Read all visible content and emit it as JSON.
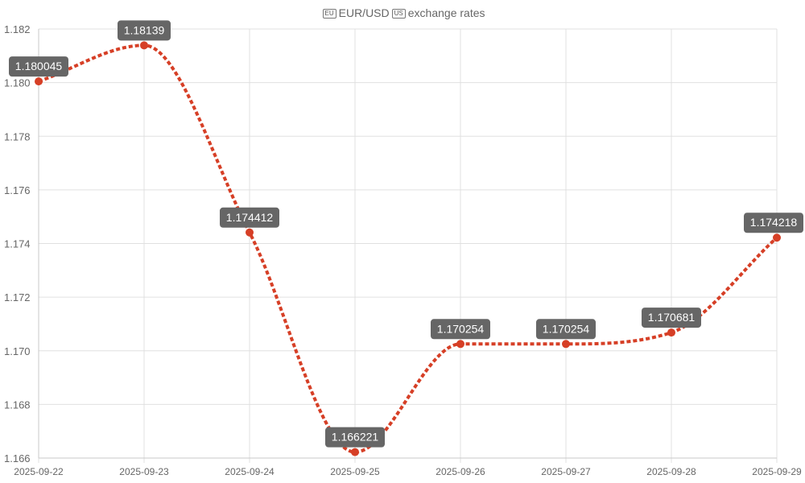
{
  "chart_data": {
    "type": "line",
    "title": "exchange rates",
    "title_prefix": "EUR/USD",
    "title_flags": [
      "EU",
      "US"
    ],
    "categories": [
      "2025-09-22",
      "2025-09-23",
      "2025-09-24",
      "2025-09-25",
      "2025-09-26",
      "2025-09-27",
      "2025-09-28",
      "2025-09-29"
    ],
    "series": [
      {
        "values": [
          1.180045,
          1.18139,
          1.174412,
          1.166221,
          1.170254,
          1.170254,
          1.170681,
          1.174218
        ],
        "labels": [
          "1.180045",
          "1.18139",
          "1.174412",
          "1.166221",
          "1.170254",
          "1.170254",
          "1.170681",
          "1.174218"
        ]
      }
    ],
    "y_ticks": [
      "1.166",
      "1.168",
      "1.170",
      "1.172",
      "1.174",
      "1.176",
      "1.178",
      "1.180",
      "1.182"
    ],
    "ylim": [
      1.166,
      1.182
    ],
    "grid": true,
    "legend": "none",
    "line_color": "#d63f26",
    "point_color": "#d63f26",
    "label_bg": "#666666",
    "label_text_color": "#ffffff",
    "grid_color": "#e0e0e0",
    "text_color": "#666666"
  }
}
